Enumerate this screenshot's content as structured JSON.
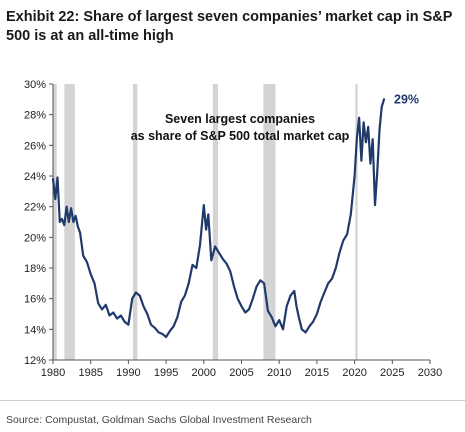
{
  "exhibit": {
    "title": "Exhibit 22: Share of largest seven companies’ market cap in S&P 500 is at an all-time high",
    "source": "Source: Compustat, Goldman Sachs Global Investment Research"
  },
  "chart_data": {
    "type": "line",
    "annotation": "Seven largest companies as share of S&P 500 total market cap",
    "annotation_lines": [
      "Seven largest companies",
      "as share of S&P 500 total market cap"
    ],
    "end_label": "29%",
    "colors": {
      "line": "#1f3a6b",
      "recession": "#d4d4d4",
      "end_label": "#1f3a6b"
    },
    "xlim": [
      1980,
      2030
    ],
    "ylim": [
      12,
      30
    ],
    "x_ticks": [
      "1980",
      "1985",
      "1990",
      "1995",
      "2000",
      "2005",
      "2010",
      "2015",
      "2020",
      "2025",
      "2030"
    ],
    "y_ticks": [
      "12%",
      "14%",
      "16%",
      "18%",
      "20%",
      "22%",
      "24%",
      "26%",
      "28%",
      "30%"
    ],
    "grid": false,
    "recessions": [
      [
        1980.0,
        1980.5
      ],
      [
        1981.5,
        1982.9
      ],
      [
        1990.6,
        1991.2
      ],
      [
        2001.2,
        2001.9
      ],
      [
        2007.9,
        2009.5
      ],
      [
        2020.1,
        2020.4
      ]
    ],
    "series": [
      {
        "x": [
          1980,
          1980.3,
          1980.6,
          1980.9,
          1981.2,
          1981.5,
          1981.8,
          1982.1,
          1982.4,
          1982.7,
          1983,
          1983.3,
          1983.6,
          1984,
          1984.5,
          1985,
          1985.5,
          1986,
          1986.5,
          1987,
          1987.5,
          1988,
          1988.5,
          1989,
          1989.5,
          1990,
          1990.5,
          1991,
          1991.5,
          1992,
          1992.5,
          1993,
          1993.5,
          1994,
          1994.5,
          1995,
          1995.5,
          1996,
          1996.5,
          1997,
          1997.5,
          1998,
          1998.5,
          1999,
          1999.5,
          2000,
          2000.3,
          2000.6,
          2001,
          2001.5,
          2002,
          2002.5,
          2003,
          2003.5,
          2004,
          2004.5,
          2005,
          2005.5,
          2006,
          2006.5,
          2007,
          2007.5,
          2008,
          2008.5,
          2009,
          2009.5,
          2010,
          2010.5,
          2011,
          2011.5,
          2012,
          2012.3,
          2012.6,
          2013,
          2013.5,
          2014,
          2014.5,
          2015,
          2015.5,
          2016,
          2016.5,
          2017,
          2017.5,
          2018,
          2018.5,
          2019,
          2019.5,
          2020,
          2020.3,
          2020.6,
          2020.9,
          2021.2,
          2021.5,
          2021.8,
          2022.1,
          2022.4,
          2022.7,
          2023,
          2023.3,
          2023.6,
          2023.9
        ],
        "y": [
          23.8,
          22.5,
          23.9,
          21.0,
          21.2,
          20.8,
          22.0,
          21.0,
          21.9,
          21.0,
          21.4,
          20.7,
          20.3,
          18.8,
          18.4,
          17.6,
          17.0,
          15.7,
          15.3,
          15.6,
          14.9,
          15.1,
          14.7,
          14.9,
          14.5,
          14.3,
          16.0,
          16.4,
          16.2,
          15.5,
          15.0,
          14.3,
          14.1,
          13.8,
          13.7,
          13.5,
          13.9,
          14.2,
          14.8,
          15.8,
          16.2,
          17.0,
          18.2,
          18.0,
          19.5,
          22.1,
          20.5,
          21.5,
          18.5,
          19.4,
          19.0,
          18.6,
          18.3,
          17.8,
          16.8,
          16.0,
          15.5,
          15.1,
          15.3,
          16.0,
          16.8,
          17.2,
          17.0,
          15.2,
          14.8,
          14.2,
          14.6,
          14.0,
          15.5,
          16.2,
          16.5,
          15.5,
          14.8,
          14.0,
          13.8,
          14.2,
          14.5,
          15.0,
          15.8,
          16.4,
          17.0,
          17.3,
          18.0,
          19.0,
          19.8,
          20.2,
          21.5,
          24.0,
          26.5,
          27.8,
          25.0,
          27.5,
          26.2,
          27.2,
          24.8,
          26.4,
          22.1,
          24.2,
          27.0,
          28.5,
          29.0
        ]
      }
    ]
  }
}
